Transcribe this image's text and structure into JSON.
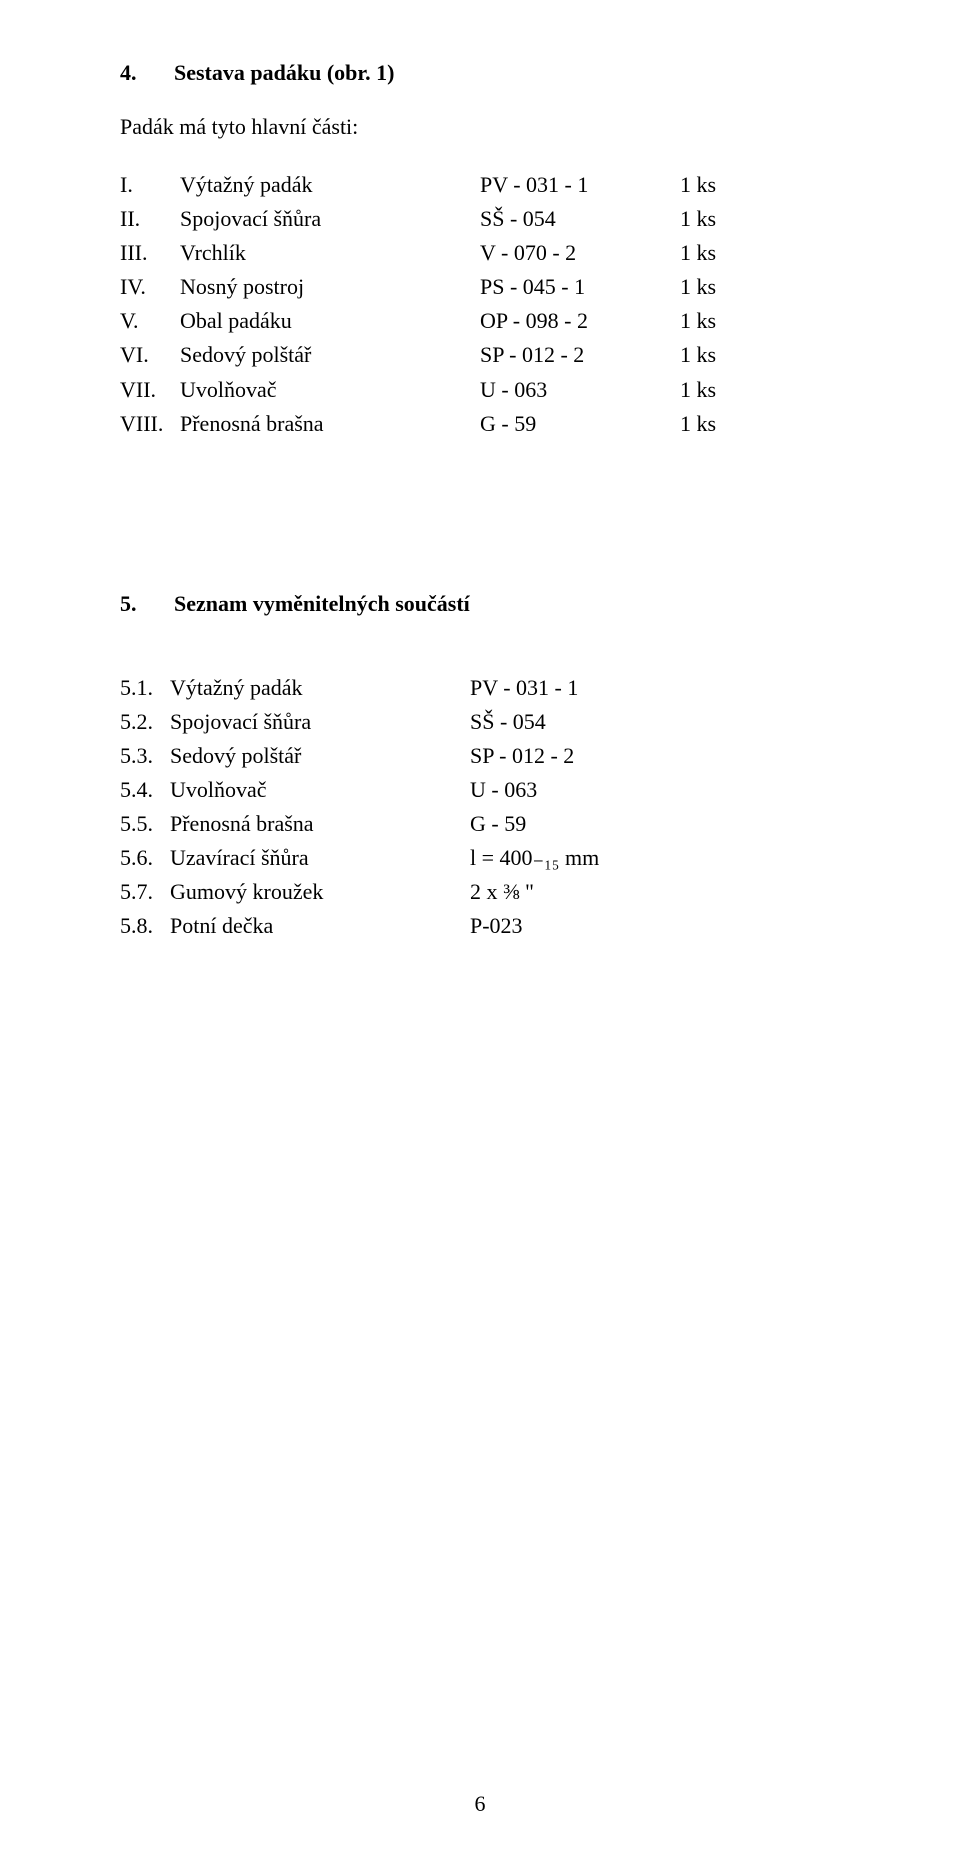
{
  "section4": {
    "number": "4.",
    "title": "Sestava padáku (obr. 1)",
    "intro": "Padák má tyto hlavní části:",
    "rows": [
      {
        "roman": "I.",
        "name": "Výtažný padák",
        "code": "PV - 031 - 1",
        "qty": "1 ks"
      },
      {
        "roman": "II.",
        "name": "Spojovací šňůra",
        "code": "SŠ - 054",
        "qty": "1 ks"
      },
      {
        "roman": "III.",
        "name": "Vrchlík",
        "code": "V - 070 - 2",
        "qty": "1 ks"
      },
      {
        "roman": "IV.",
        "name": "Nosný postroj",
        "code": "PS - 045 - 1",
        "qty": "1 ks"
      },
      {
        "roman": "V.",
        "name": "Obal padáku",
        "code": "OP - 098 - 2",
        "qty": "1 ks"
      },
      {
        "roman": "VI.",
        "name": "Sedový polštář",
        "code": "SP - 012 - 2",
        "qty": "1 ks"
      },
      {
        "roman": "VII.",
        "name": "Uvolňovač",
        "code": "U - 063",
        "qty": "1 ks"
      },
      {
        "roman": "VIII.",
        "name": "Přenosná brašna",
        "code": "G - 59",
        "qty": "1 ks"
      }
    ]
  },
  "section5": {
    "number": "5.",
    "title": "Seznam vyměnitelných součástí",
    "rows": [
      {
        "num": "5.1.",
        "name": "Výtažný padák",
        "code": "PV - 031 - 1"
      },
      {
        "num": "5.2.",
        "name": "Spojovací šňůra",
        "code": "SŠ - 054"
      },
      {
        "num": "5.3.",
        "name": "Sedový polštář",
        "code": "SP - 012 - 2"
      },
      {
        "num": "5.4.",
        "name": "Uvolňovač",
        "code": "U - 063"
      },
      {
        "num": "5.5.",
        "name": "Přenosná brašna",
        "code": "G - 59"
      },
      {
        "num": "5.6.",
        "name": "Uzavírací šňůra",
        "code": "l = 400₋₁₅ mm"
      },
      {
        "num": "5.7.",
        "name": "Gumový kroužek",
        "code": "2 x  ⅜ \""
      },
      {
        "num": "5.8.",
        "name": "Potní dečka",
        "code": "P-023"
      }
    ]
  },
  "page_number": "6"
}
